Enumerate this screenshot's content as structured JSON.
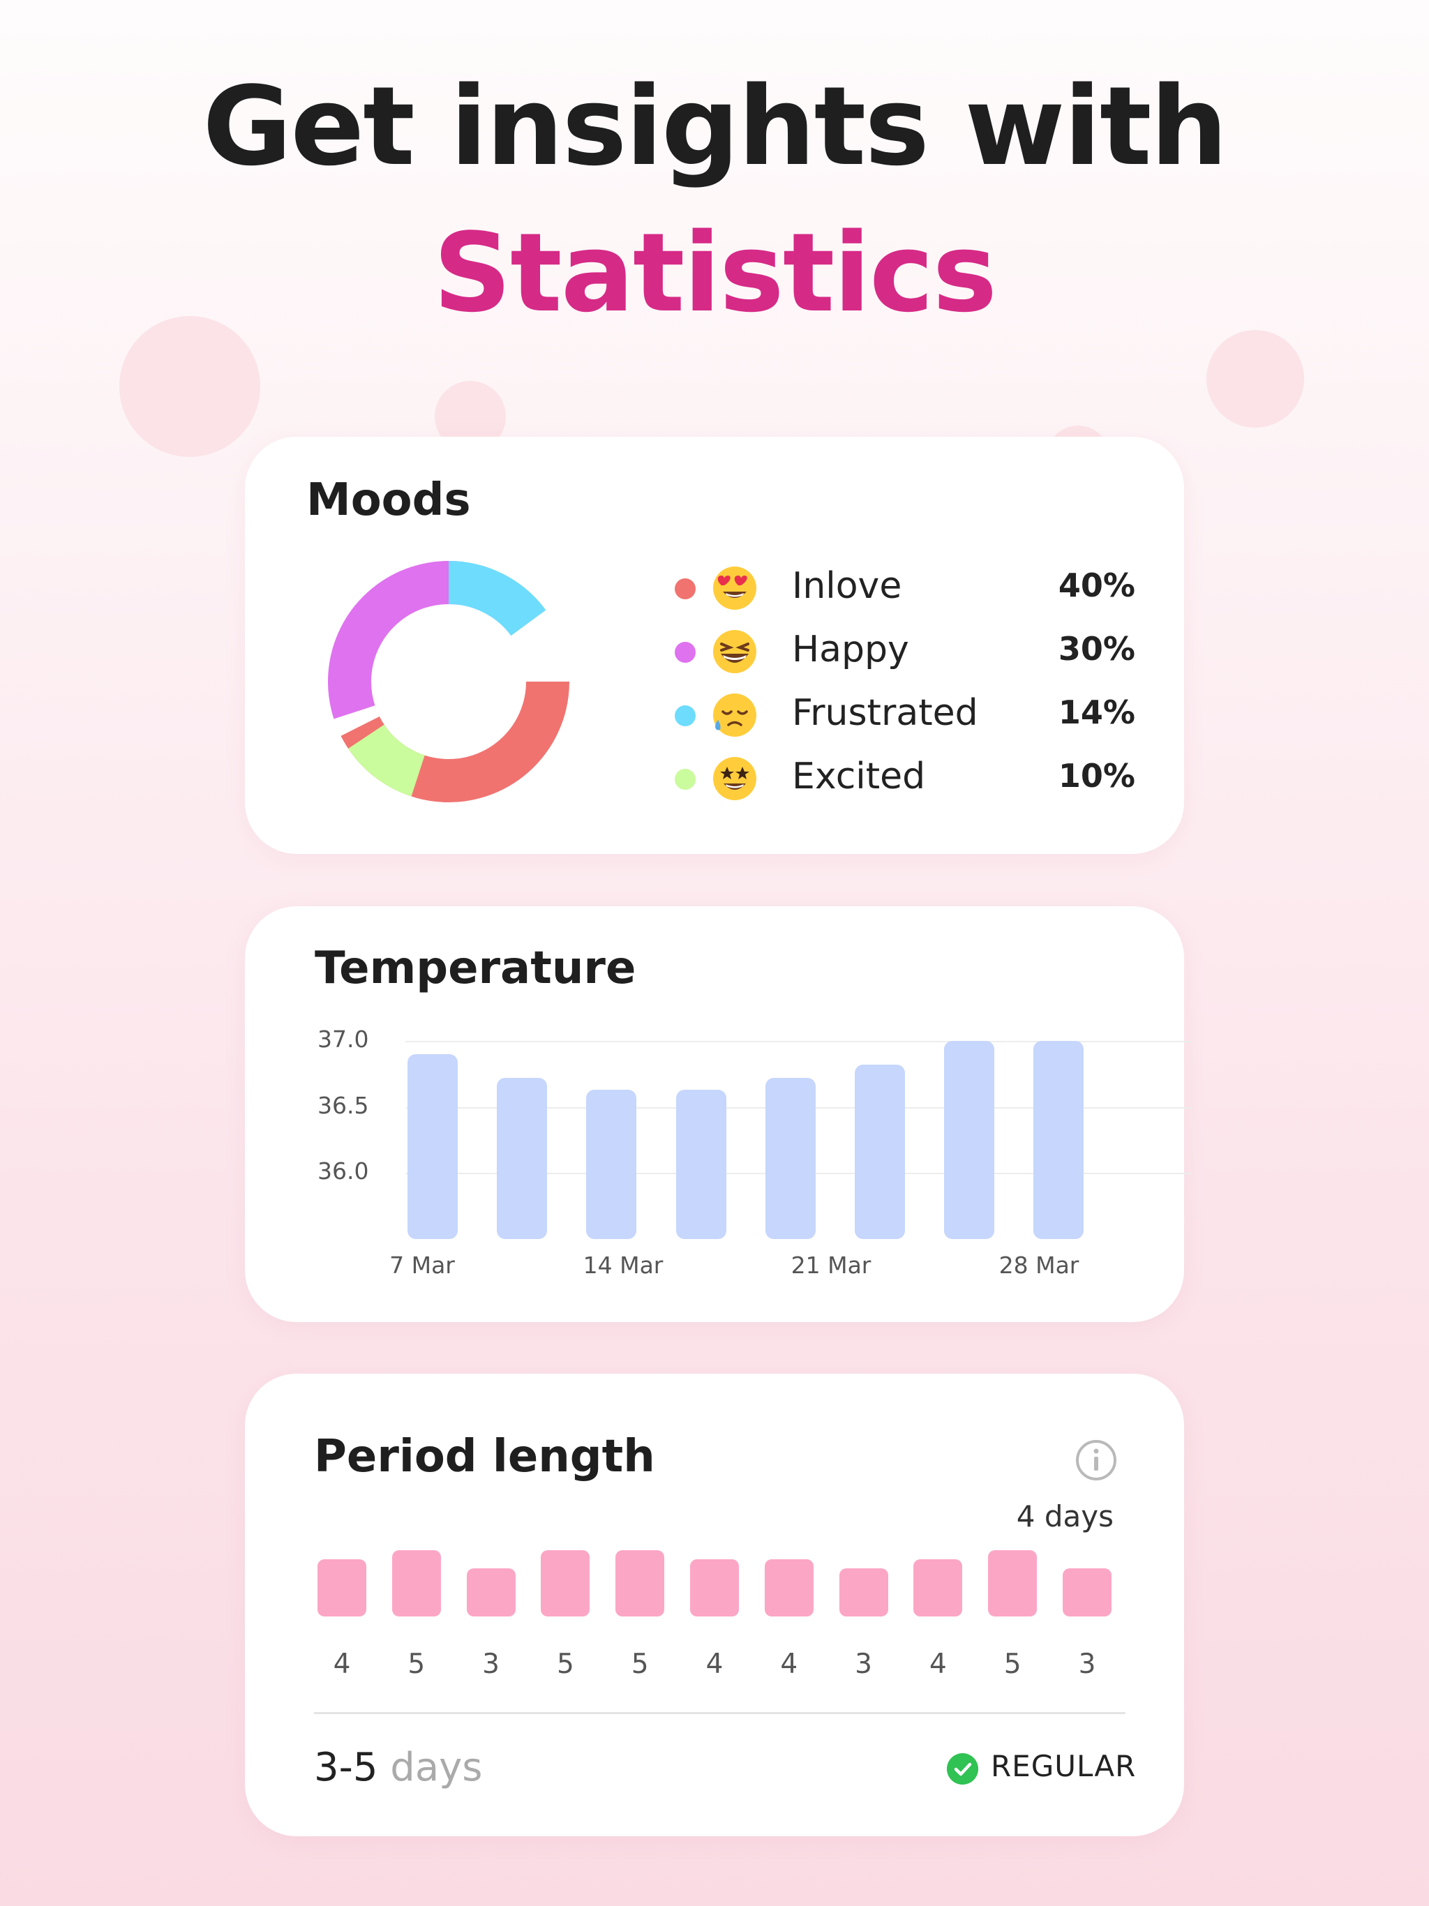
{
  "header": {
    "line1": "Get insights with",
    "line2": "Statistics"
  },
  "moods": {
    "title": "Moods",
    "items": [
      {
        "label": "Inlove",
        "percent": "40%",
        "value": 40,
        "color": "#f07370",
        "icon": "heart-eyes-emoji-icon"
      },
      {
        "label": "Happy",
        "percent": "30%",
        "value": 30,
        "color": "#df72ef",
        "icon": "laughing-emoji-icon"
      },
      {
        "label": "Frustrated",
        "percent": "14%",
        "value": 14,
        "color": "#6edcfd",
        "icon": "sad-sweat-emoji-icon"
      },
      {
        "label": "Excited",
        "percent": "10%",
        "value": 10,
        "color": "#cafb9c",
        "icon": "star-eyes-emoji-icon"
      }
    ]
  },
  "temperature": {
    "title": "Temperature",
    "y_ticks": [
      "37.0",
      "36.5",
      "36.0"
    ],
    "x_ticks": [
      "7 Mar",
      "14 Mar",
      "21 Mar",
      "28 Mar"
    ],
    "bar_color": "#c6d6fc"
  },
  "period": {
    "title": "Period length",
    "highlight": "4 days",
    "range_value": "3-5",
    "range_unit": "days",
    "status": "REGULAR",
    "status_color": "#30c253",
    "bar_color": "#fca6c5"
  },
  "chart_data": [
    {
      "type": "pie",
      "title": "Moods",
      "categories": [
        "Inlove",
        "Happy",
        "Frustrated",
        "Excited"
      ],
      "values": [
        40,
        30,
        14,
        10
      ]
    },
    {
      "type": "bar",
      "title": "Temperature",
      "x": [
        "7 Mar",
        "",
        "14 Mar",
        "",
        "21 Mar",
        "",
        "28 Mar",
        ""
      ],
      "values": [
        36.9,
        36.72,
        36.63,
        36.63,
        36.72,
        36.82,
        37.0,
        37.0
      ],
      "ylim": [
        35.5,
        37.0
      ],
      "grid": true
    },
    {
      "type": "bar",
      "title": "Period length",
      "values": [
        4,
        5,
        3,
        5,
        5,
        4,
        4,
        3,
        4,
        5,
        3
      ],
      "labels": [
        "4",
        "5",
        "3",
        "5",
        "5",
        "4",
        "4",
        "3",
        "4",
        "5",
        "3"
      ],
      "ylim": [
        0,
        5
      ]
    }
  ]
}
